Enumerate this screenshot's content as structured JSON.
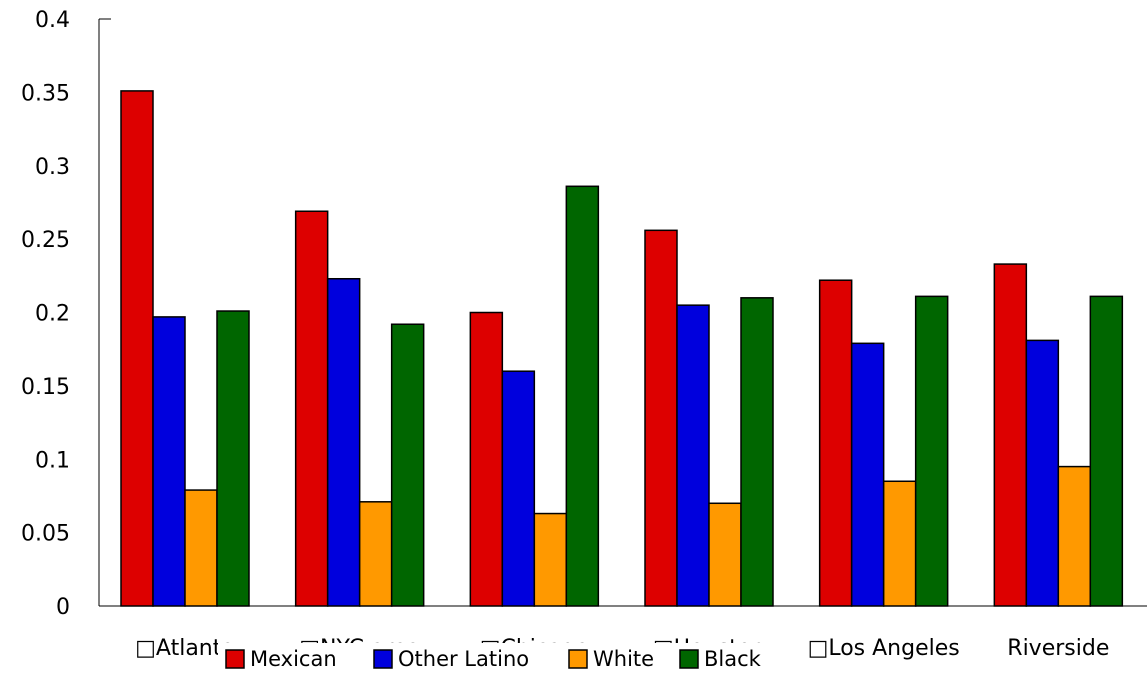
{
  "chart_data": {
    "type": "bar",
    "categories": [
      "□Atlanta",
      "□NYC area",
      "□Chicago",
      "□Houston",
      "□Los Angeles",
      "Riverside"
    ],
    "series": [
      {
        "name": "Mexican",
        "color": "#dd0000",
        "values": [
          0.351,
          0.269,
          0.2,
          0.256,
          0.222,
          0.233
        ]
      },
      {
        "name": "Other Latino",
        "color": "#0000dd",
        "values": [
          0.197,
          0.223,
          0.16,
          0.205,
          0.179,
          0.181
        ]
      },
      {
        "name": "White",
        "color": "#ff9900",
        "values": [
          0.079,
          0.071,
          0.063,
          0.07,
          0.085,
          0.095
        ]
      },
      {
        "name": "Black",
        "color": "#006600",
        "values": [
          0.201,
          0.192,
          0.286,
          0.21,
          0.211,
          0.211
        ]
      }
    ],
    "ylim": [
      0,
      0.4
    ],
    "yticks": [
      "0",
      "0.05",
      "0.1",
      "0.15",
      "0.2",
      "0.25",
      "0.3",
      "0.35",
      "0.4"
    ],
    "title": "",
    "xlabel": "",
    "ylabel": "",
    "grid": false,
    "legend_position": "bottom"
  }
}
